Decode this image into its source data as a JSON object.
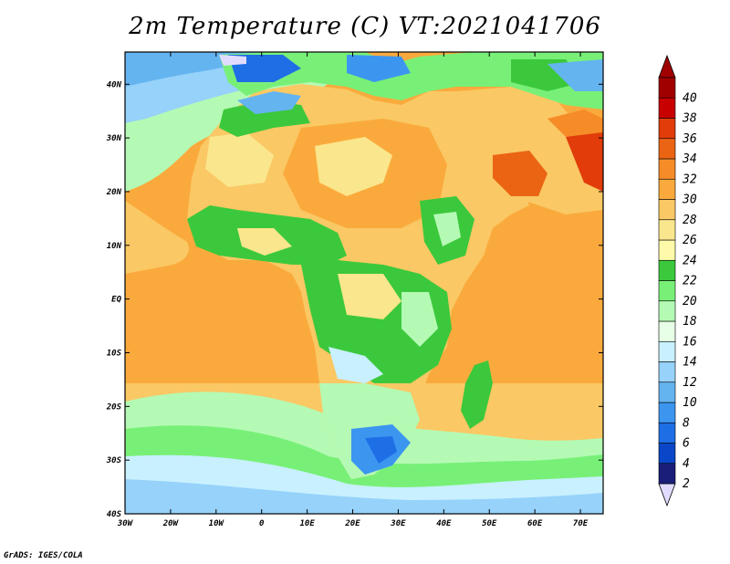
{
  "title": "2m Temperature (C) VT:2021041706",
  "credit": "GrADS: IGES/COLA",
  "map": {
    "lon_range": [
      -30,
      75
    ],
    "lat_range": [
      -40,
      46
    ],
    "lon_ticks": [
      {
        "value": -30,
        "label": "30W"
      },
      {
        "value": -20,
        "label": "20W"
      },
      {
        "value": -10,
        "label": "10W"
      },
      {
        "value": 0,
        "label": "0"
      },
      {
        "value": 10,
        "label": "10E"
      },
      {
        "value": 20,
        "label": "20E"
      },
      {
        "value": 30,
        "label": "30E"
      },
      {
        "value": 40,
        "label": "40E"
      },
      {
        "value": 50,
        "label": "50E"
      },
      {
        "value": 60,
        "label": "60E"
      },
      {
        "value": 70,
        "label": "70E"
      }
    ],
    "lat_ticks": [
      {
        "value": 40,
        "label": "40N"
      },
      {
        "value": 30,
        "label": "30N"
      },
      {
        "value": 20,
        "label": "20N"
      },
      {
        "value": 10,
        "label": "10N"
      },
      {
        "value": 0,
        "label": "EQ"
      },
      {
        "value": -10,
        "label": "10S"
      },
      {
        "value": -20,
        "label": "20S"
      },
      {
        "value": -30,
        "label": "30S"
      },
      {
        "value": -40,
        "label": "40S"
      }
    ]
  },
  "colorbar": {
    "levels": [
      "2",
      "4",
      "6",
      "8",
      "10",
      "12",
      "14",
      "16",
      "18",
      "20",
      "22",
      "24",
      "26",
      "28",
      "30",
      "32",
      "34",
      "36",
      "38",
      "40"
    ],
    "colors": [
      "#1a1e78",
      "#0a46c8",
      "#1e6ee6",
      "#3c96f0",
      "#64b4f0",
      "#96d2fa",
      "#c8f0ff",
      "#e6ffe6",
      "#b4fab4",
      "#78f078",
      "#3cc83c",
      "#fffaaa",
      "#fae68c",
      "#fac864",
      "#faaa3c",
      "#f58c28",
      "#eb6414",
      "#e13c0a",
      "#c80000",
      "#a00000"
    ],
    "under_color": "#e1dcff",
    "over_color": "#a00000"
  }
}
